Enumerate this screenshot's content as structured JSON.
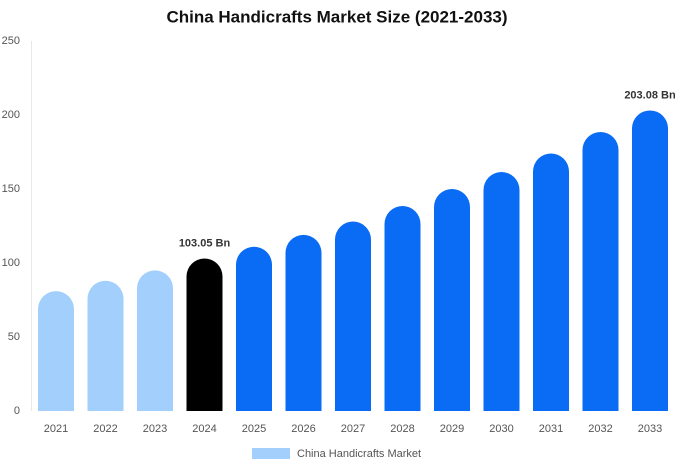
{
  "chart_data": {
    "type": "bar",
    "title": "China Handicrafts Market Size (2021-2033)",
    "categories": [
      "2021",
      "2022",
      "2023",
      "2024",
      "2025",
      "2026",
      "2027",
      "2028",
      "2029",
      "2030",
      "2031",
      "2032",
      "2033"
    ],
    "series": [
      {
        "name": "China Handicrafts Market",
        "color": "#a3cffd",
        "values": [
          81,
          88,
          95,
          103.05,
          111,
          119,
          128,
          138.5,
          150,
          161.5,
          174,
          188.5,
          203.08
        ],
        "value_labels": [
          null,
          null,
          null,
          "103.05 Bn",
          null,
          null,
          null,
          null,
          null,
          null,
          null,
          null,
          "203.08 Bn"
        ]
      }
    ],
    "bar_colors": [
      "#a3cffd",
      "#a3cffd",
      "#a3cffd",
      "#000000",
      "#0a6cf5",
      "#0a6cf5",
      "#0a6cf5",
      "#0a6cf5",
      "#0a6cf5",
      "#0a6cf5",
      "#0a6cf5",
      "#0a6cf5",
      "#0a6cf5"
    ],
    "ylim": [
      0,
      250
    ],
    "yticks": [
      0,
      50,
      100,
      150,
      200,
      250
    ],
    "grid": false,
    "legend": "bottom"
  }
}
